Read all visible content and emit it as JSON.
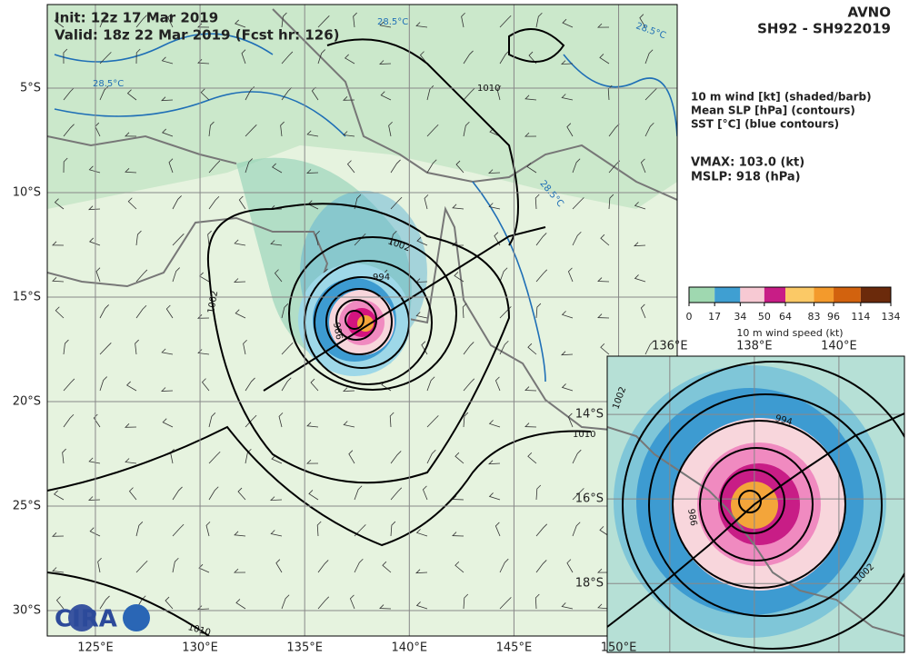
{
  "header": {
    "init": "Init:   12z 17 Mar 2019",
    "valid": "Valid: 18z 22 Mar 2019 (Fcst hr: 126)",
    "model": "AVNO",
    "storm": "SH92 - SH922019"
  },
  "legend": {
    "lines": [
      "10 m wind [kt] (shaded/barb)",
      "Mean SLP [hPa] (contours)",
      "SST [°C] (blue contours)"
    ],
    "vmax": "VMAX: 103.0 (kt)",
    "mslp": "MSLP:  918 (hPa)"
  },
  "colorbar": {
    "label": "10 m wind speed (kt)",
    "lim": [
      0,
      134
    ],
    "ticks": [
      0,
      17,
      34,
      50,
      64,
      83,
      96,
      114,
      134
    ],
    "colors": [
      "#9fd8b0",
      "#3f9fd2",
      "#f7c9d3",
      "#c81d86",
      "#fbc966",
      "#f39a2c",
      "#d2620e",
      "#6b2a0b"
    ]
  },
  "map": {
    "lonlim": [
      122.7,
      152.8
    ],
    "latlim": [
      -1.0,
      -31.22
    ],
    "xticks": [
      {
        "value": 125,
        "label": "125°E"
      },
      {
        "value": 130,
        "label": "130°E"
      },
      {
        "value": 135,
        "label": "135°E"
      },
      {
        "value": 140,
        "label": "140°E"
      },
      {
        "value": 145,
        "label": "145°E"
      },
      {
        "value": 150,
        "label": "150°E"
      }
    ],
    "yticks": [
      {
        "value": -5,
        "label": "5°S"
      },
      {
        "value": -10,
        "label": "10°S"
      },
      {
        "value": -15,
        "label": "15°S"
      },
      {
        "value": -20,
        "label": "20°S"
      },
      {
        "value": -25,
        "label": "25°S"
      },
      {
        "value": -30,
        "label": "30°S"
      }
    ],
    "contour_labels": [
      "1010",
      "1002",
      "994",
      "986",
      "1010",
      "1010",
      "1002",
      "28.5°C",
      "28.5°C",
      "28.5°C",
      "28.5°C"
    ]
  },
  "inset": {
    "xlim": [
      134.52,
      141.55
    ],
    "ylim": [
      -12.62,
      -19.63
    ],
    "xticks": [
      {
        "value": 136,
        "label": "136°E"
      },
      {
        "value": 138,
        "label": "138°E"
      },
      {
        "value": 140,
        "label": "140°E"
      }
    ],
    "yticks": [
      {
        "value": -14,
        "label": "14°S"
      },
      {
        "value": -16,
        "label": "16°S"
      },
      {
        "value": -18,
        "label": "18°S"
      }
    ],
    "contour_labels": [
      "994",
      "986",
      "1002",
      "1002"
    ]
  },
  "logo": "CIRA"
}
